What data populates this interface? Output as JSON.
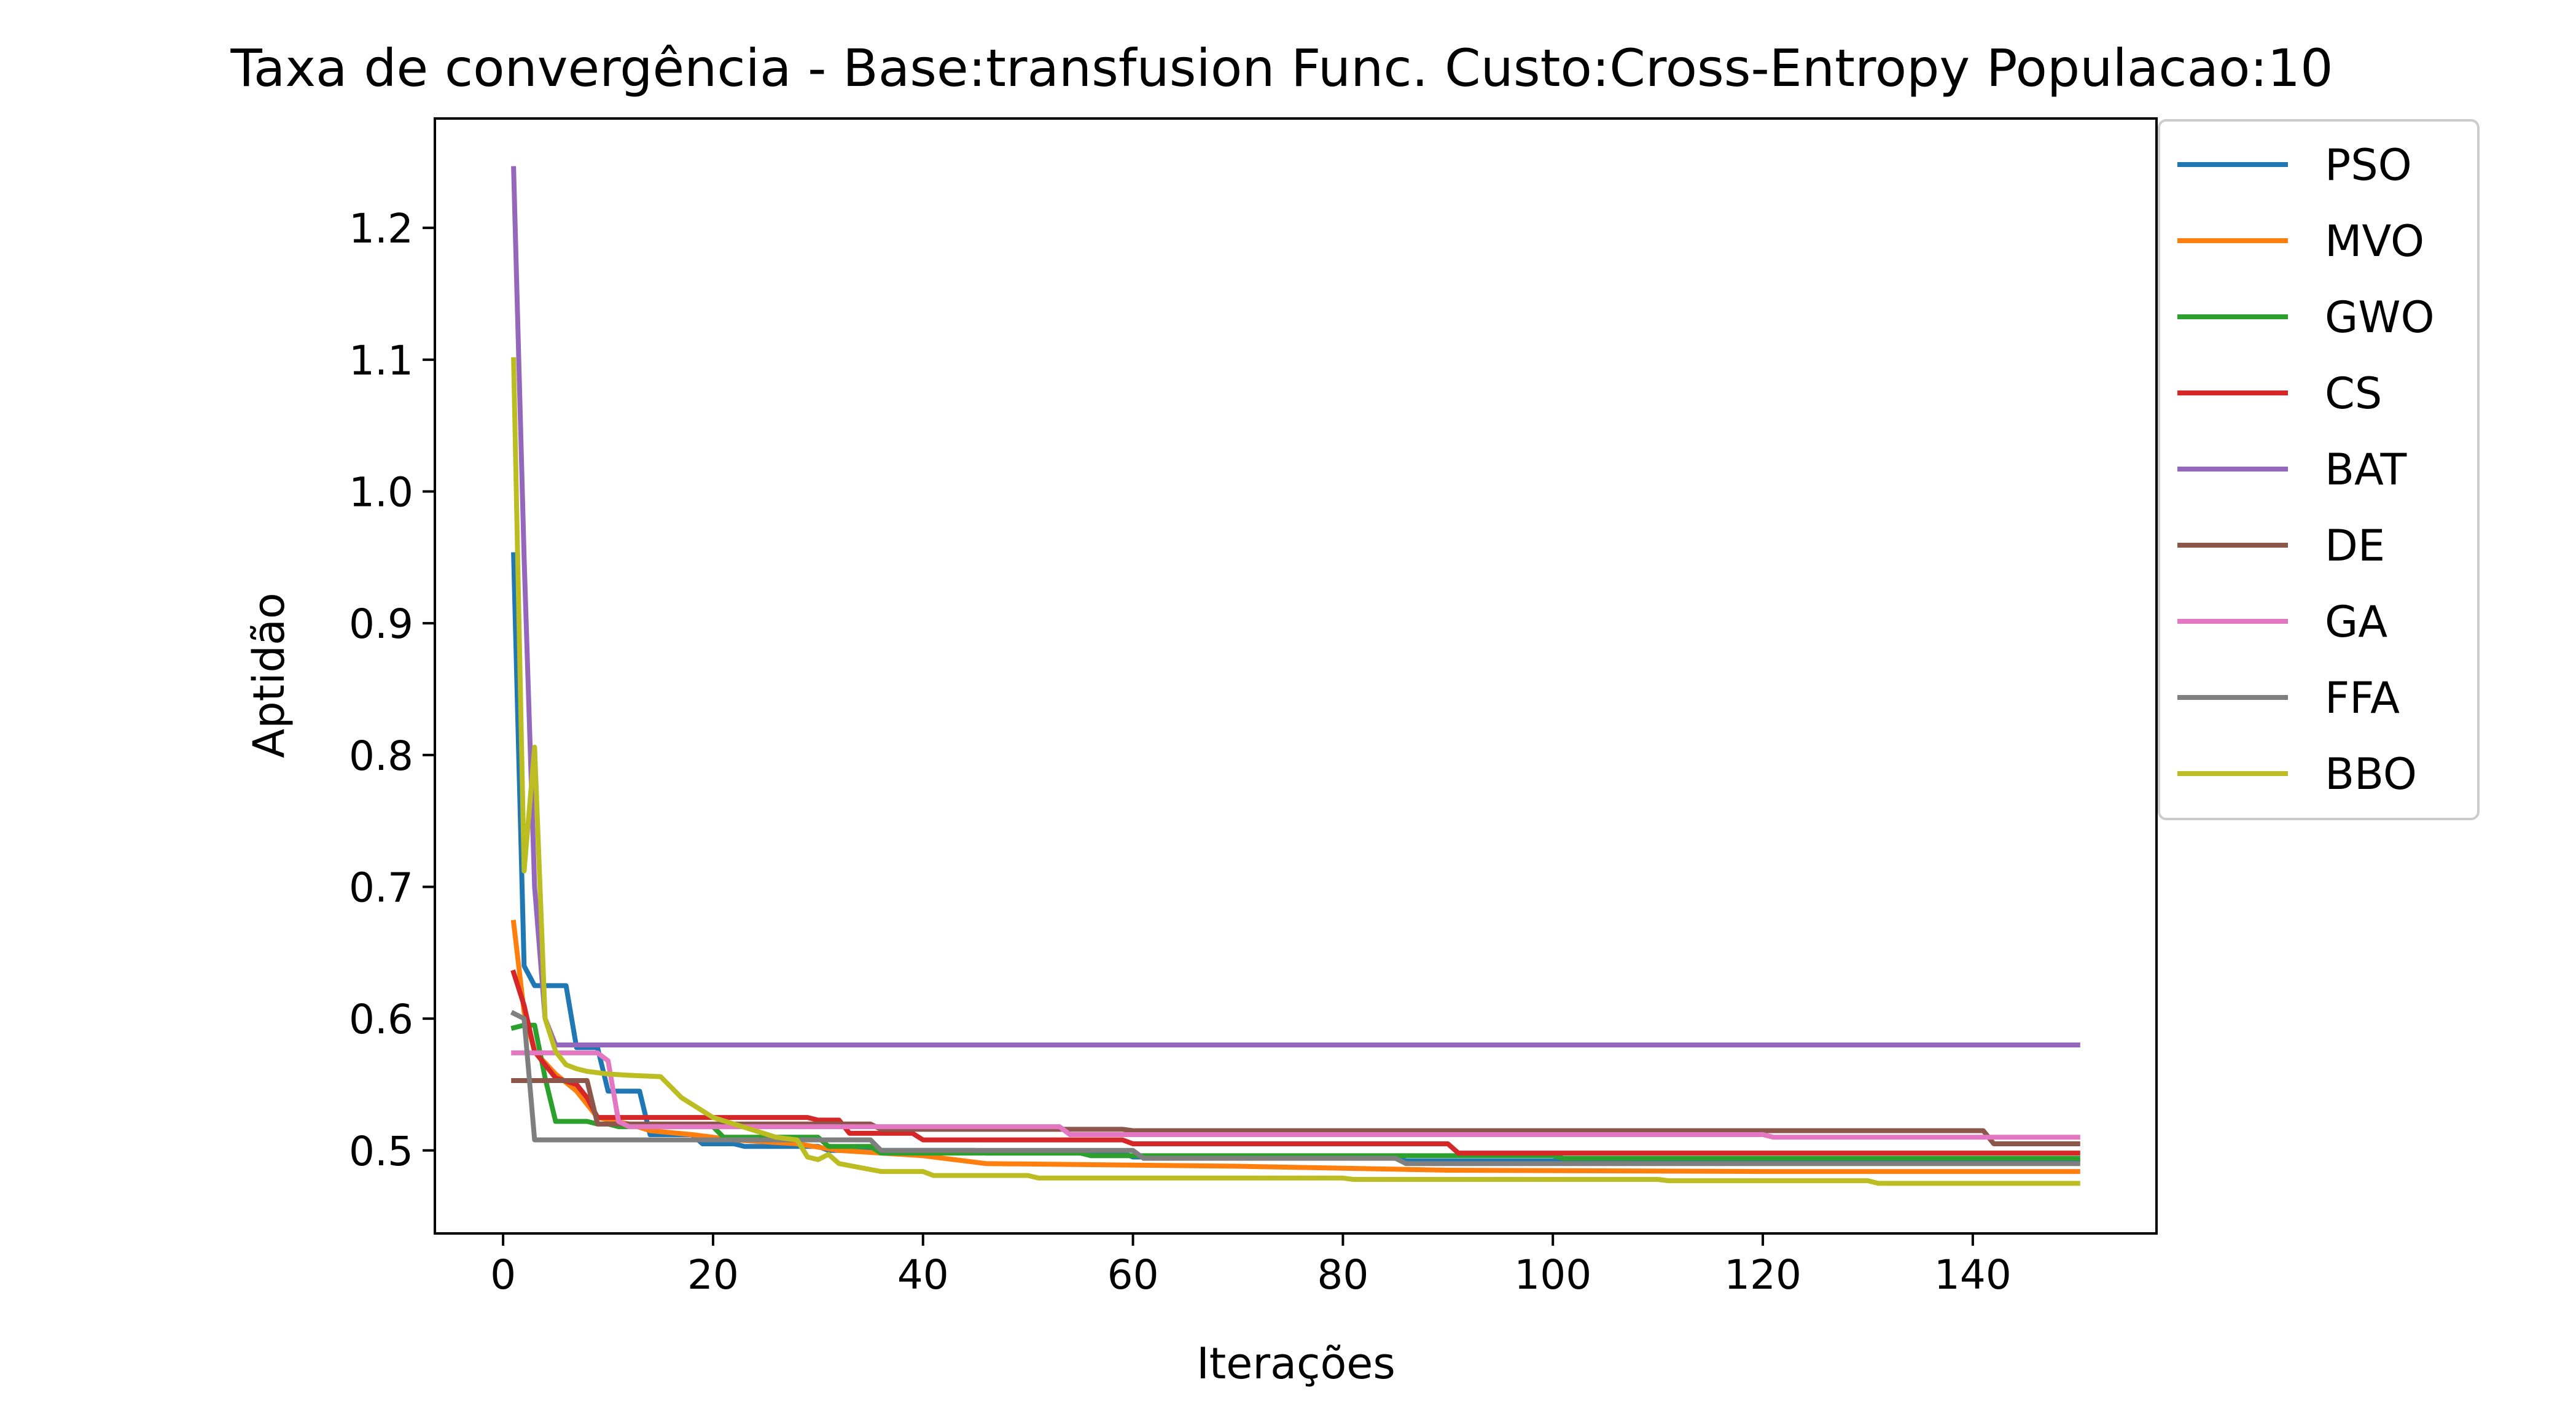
{
  "chart_data": {
    "type": "line",
    "title": "Taxa de convergência - Base:transfusion Func. Custo:Cross-Entropy Populacao:10",
    "xlabel": "Iterações",
    "ylabel": "Aptidão",
    "xlim": [
      -6.5,
      157.5
    ],
    "ylim": [
      0.437,
      1.283
    ],
    "xticks": [
      0,
      20,
      40,
      60,
      80,
      100,
      120,
      140
    ],
    "xtick_labels": [
      "0",
      "20",
      "40",
      "60",
      "80",
      "100",
      "120",
      "140"
    ],
    "yticks": [
      0.5,
      0.6,
      0.7,
      0.8,
      0.9,
      1.0,
      1.1,
      1.2
    ],
    "ytick_labels": [
      "0.5",
      "0.6",
      "0.7",
      "0.8",
      "0.9",
      "1.0",
      "1.1",
      "1.2"
    ],
    "grid": false,
    "legend_position": "outside-right-top",
    "series": [
      {
        "name": "PSO",
        "color": "#1f77b4",
        "points": [
          [
            1,
            0.952
          ],
          [
            2,
            0.64
          ],
          [
            3,
            0.625
          ],
          [
            4,
            0.625
          ],
          [
            6,
            0.625
          ],
          [
            7,
            0.578
          ],
          [
            9,
            0.578
          ],
          [
            10,
            0.545
          ],
          [
            13,
            0.545
          ],
          [
            14,
            0.512
          ],
          [
            18,
            0.512
          ],
          [
            19,
            0.505
          ],
          [
            22,
            0.505
          ],
          [
            23,
            0.503
          ],
          [
            30,
            0.503
          ],
          [
            31,
            0.5
          ],
          [
            45,
            0.5
          ],
          [
            46,
            0.498
          ],
          [
            59,
            0.498
          ],
          [
            60,
            0.495
          ],
          [
            85,
            0.495
          ],
          [
            86,
            0.492
          ],
          [
            150,
            0.492
          ]
        ]
      },
      {
        "name": "MVO",
        "color": "#ff7f0e",
        "points": [
          [
            1,
            0.673
          ],
          [
            2,
            0.605
          ],
          [
            3,
            0.575
          ],
          [
            5,
            0.558
          ],
          [
            7,
            0.545
          ],
          [
            8,
            0.535
          ],
          [
            9,
            0.525
          ],
          [
            12,
            0.52
          ],
          [
            14,
            0.515
          ],
          [
            18,
            0.512
          ],
          [
            22,
            0.508
          ],
          [
            28,
            0.505
          ],
          [
            32,
            0.5
          ],
          [
            40,
            0.496
          ],
          [
            46,
            0.49
          ],
          [
            70,
            0.488
          ],
          [
            90,
            0.485
          ],
          [
            120,
            0.484
          ],
          [
            150,
            0.484
          ]
        ]
      },
      {
        "name": "GWO",
        "color": "#2ca02c",
        "points": [
          [
            1,
            0.593
          ],
          [
            2,
            0.595
          ],
          [
            3,
            0.595
          ],
          [
            4,
            0.555
          ],
          [
            5,
            0.522
          ],
          [
            8,
            0.522
          ],
          [
            9,
            0.52
          ],
          [
            10,
            0.52
          ],
          [
            11,
            0.518
          ],
          [
            20,
            0.518
          ],
          [
            21,
            0.51
          ],
          [
            30,
            0.51
          ],
          [
            31,
            0.503
          ],
          [
            35,
            0.503
          ],
          [
            36,
            0.498
          ],
          [
            55,
            0.498
          ],
          [
            56,
            0.496
          ],
          [
            100,
            0.496
          ],
          [
            101,
            0.494
          ],
          [
            150,
            0.494
          ]
        ]
      },
      {
        "name": "CS",
        "color": "#d62728",
        "points": [
          [
            1,
            0.635
          ],
          [
            2,
            0.61
          ],
          [
            3,
            0.575
          ],
          [
            5,
            0.555
          ],
          [
            7,
            0.55
          ],
          [
            8,
            0.54
          ],
          [
            9,
            0.525
          ],
          [
            29,
            0.525
          ],
          [
            30,
            0.523
          ],
          [
            32,
            0.523
          ],
          [
            33,
            0.513
          ],
          [
            39,
            0.513
          ],
          [
            40,
            0.508
          ],
          [
            59,
            0.508
          ],
          [
            60,
            0.505
          ],
          [
            90,
            0.505
          ],
          [
            91,
            0.498
          ],
          [
            150,
            0.498
          ]
        ]
      },
      {
        "name": "BAT",
        "color": "#9467bd",
        "points": [
          [
            1,
            1.245
          ],
          [
            2,
            0.95
          ],
          [
            3,
            0.7
          ],
          [
            4,
            0.6
          ],
          [
            5,
            0.58
          ],
          [
            150,
            0.58
          ]
        ]
      },
      {
        "name": "DE",
        "color": "#8c564b",
        "points": [
          [
            1,
            0.553
          ],
          [
            8,
            0.553
          ],
          [
            9,
            0.52
          ],
          [
            35,
            0.52
          ],
          [
            36,
            0.516
          ],
          [
            59,
            0.516
          ],
          [
            60,
            0.515
          ],
          [
            141,
            0.515
          ],
          [
            142,
            0.505
          ],
          [
            150,
            0.505
          ]
        ]
      },
      {
        "name": "GA",
        "color": "#e377c2",
        "points": [
          [
            1,
            0.574
          ],
          [
            9,
            0.574
          ],
          [
            10,
            0.568
          ],
          [
            11,
            0.522
          ],
          [
            12,
            0.518
          ],
          [
            53,
            0.518
          ],
          [
            54,
            0.512
          ],
          [
            120,
            0.512
          ],
          [
            121,
            0.51
          ],
          [
            150,
            0.51
          ]
        ]
      },
      {
        "name": "FFA",
        "color": "#7f7f7f",
        "points": [
          [
            1,
            0.604
          ],
          [
            2,
            0.6
          ],
          [
            3,
            0.508
          ],
          [
            35,
            0.508
          ],
          [
            36,
            0.5
          ],
          [
            60,
            0.5
          ],
          [
            61,
            0.494
          ],
          [
            85,
            0.494
          ],
          [
            86,
            0.49
          ],
          [
            150,
            0.49
          ]
        ]
      },
      {
        "name": "BBO",
        "color": "#bcbd22",
        "points": [
          [
            1,
            1.1
          ],
          [
            2,
            0.712
          ],
          [
            3,
            0.806
          ],
          [
            4,
            0.6
          ],
          [
            5,
            0.575
          ],
          [
            6,
            0.565
          ],
          [
            7,
            0.562
          ],
          [
            8,
            0.56
          ],
          [
            10,
            0.558
          ],
          [
            12,
            0.557
          ],
          [
            15,
            0.556
          ],
          [
            16,
            0.548
          ],
          [
            17,
            0.54
          ],
          [
            18,
            0.535
          ],
          [
            19,
            0.53
          ],
          [
            20,
            0.525
          ],
          [
            22,
            0.52
          ],
          [
            24,
            0.515
          ],
          [
            26,
            0.51
          ],
          [
            28,
            0.508
          ],
          [
            29,
            0.495
          ],
          [
            30,
            0.493
          ],
          [
            31,
            0.497
          ],
          [
            32,
            0.49
          ],
          [
            34,
            0.487
          ],
          [
            36,
            0.484
          ],
          [
            40,
            0.484
          ],
          [
            41,
            0.481
          ],
          [
            50,
            0.481
          ],
          [
            51,
            0.479
          ],
          [
            80,
            0.479
          ],
          [
            81,
            0.478
          ],
          [
            110,
            0.478
          ],
          [
            111,
            0.477
          ],
          [
            130,
            0.477
          ],
          [
            131,
            0.475
          ],
          [
            150,
            0.475
          ]
        ]
      }
    ]
  }
}
